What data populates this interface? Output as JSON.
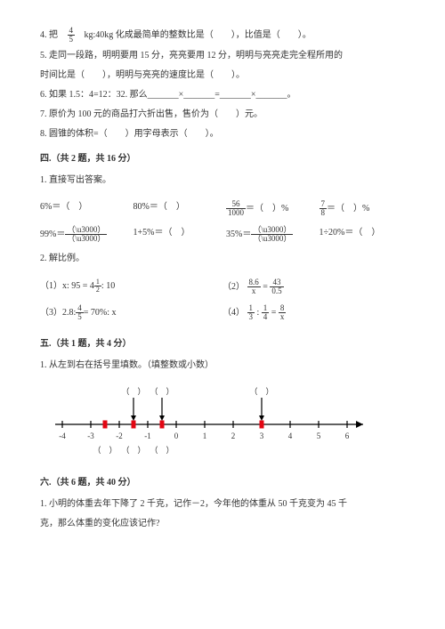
{
  "q4": {
    "prefix": "4. 把",
    "frac_num": "4",
    "frac_den": "5",
    "mid": "kg:40kg 化成最简单的整数比是（　　），比值是（　　）。"
  },
  "q5": {
    "l1": "5. 走同一段路，明明要用 15 分，亮亮要用 12 分，明明与亮亮走完全程所用的",
    "l2": "时间比是（　　），明明与亮亮的速度比是（　　）。"
  },
  "q6": "6. 如果 1.5：4=12：32. 那么_______×_______=_______×_______。",
  "q7": "7. 原价为 100 元的商品打六折出售，售价为（　　）元。",
  "q8": "8. 圆锥的体积=（　　）用字母表示（　　）。",
  "sec4": {
    "title": "四.（共 2 题，共 16 分）",
    "q1": "1. 直接写出答案。",
    "r1": {
      "a": "6%＝（　）",
      "b": "80%＝（　）",
      "c_num": "56",
      "c_den": "1000",
      "c_tail": "＝（　）%",
      "d_num": "7",
      "d_den": "8",
      "d_tail": "＝（　）%"
    },
    "r2": {
      "a": "99%＝",
      "b": "1+5%＝（　）",
      "c": "35%＝",
      "d": "1÷20%＝（　）"
    },
    "q2": "2. 解比例。",
    "p1_a": "（1）x: 95 = 4",
    "p1_num": "1",
    "p1_den": "2",
    "p1_c": ": 10",
    "p2_a": "（2）",
    "p2_n1": "8.6",
    "p2_d1": "x",
    "p2_eq": "=",
    "p2_n2": "43",
    "p2_d2": "0.5",
    "p3_a": "（3）2.8:",
    "p3_num": "4",
    "p3_den": "5",
    "p3_c": "= 70%: x",
    "p4_a": "（4）",
    "p4_n1": "1",
    "p4_d1": "3",
    "p4_m": ":",
    "p4_n2": "1",
    "p4_d2": "4",
    "p4_eq": "=",
    "p4_n3": "8",
    "p4_d3": "x"
  },
  "sec5": {
    "title": "五.（共 1 题，共 4 分）",
    "q1": "1. 从左到右在括号里填数。（填整数或小数）"
  },
  "numberline": {
    "ticks": [
      "-4",
      "-3",
      "-2",
      "-1",
      "0",
      "1",
      "2",
      "3",
      "4",
      "5",
      "6"
    ],
    "top_brackets": [
      "（　）",
      "（　）",
      "（　）"
    ],
    "bot_brackets": [
      "（　）",
      "（　）",
      "（　）"
    ],
    "top_positions": [
      2.5,
      3.5,
      7.0
    ],
    "bot_positions": [
      1.5,
      2.5,
      3.5
    ],
    "red_positions": [
      1.5,
      2.5,
      3.5,
      7.0
    ],
    "arrow_color": "#000000",
    "red_color": "#e30613",
    "tick_fontsize": 9,
    "bracket_fontsize": 9
  },
  "sec6": {
    "title": "六.（共 6 题，共 40 分）",
    "q1_l1": "1. 小明的体重去年下降了 2 千克，记作－2，今年他的体重从 50 千克变为 45 千",
    "q1_l2": "克，那么体重的变化应该记作?"
  }
}
